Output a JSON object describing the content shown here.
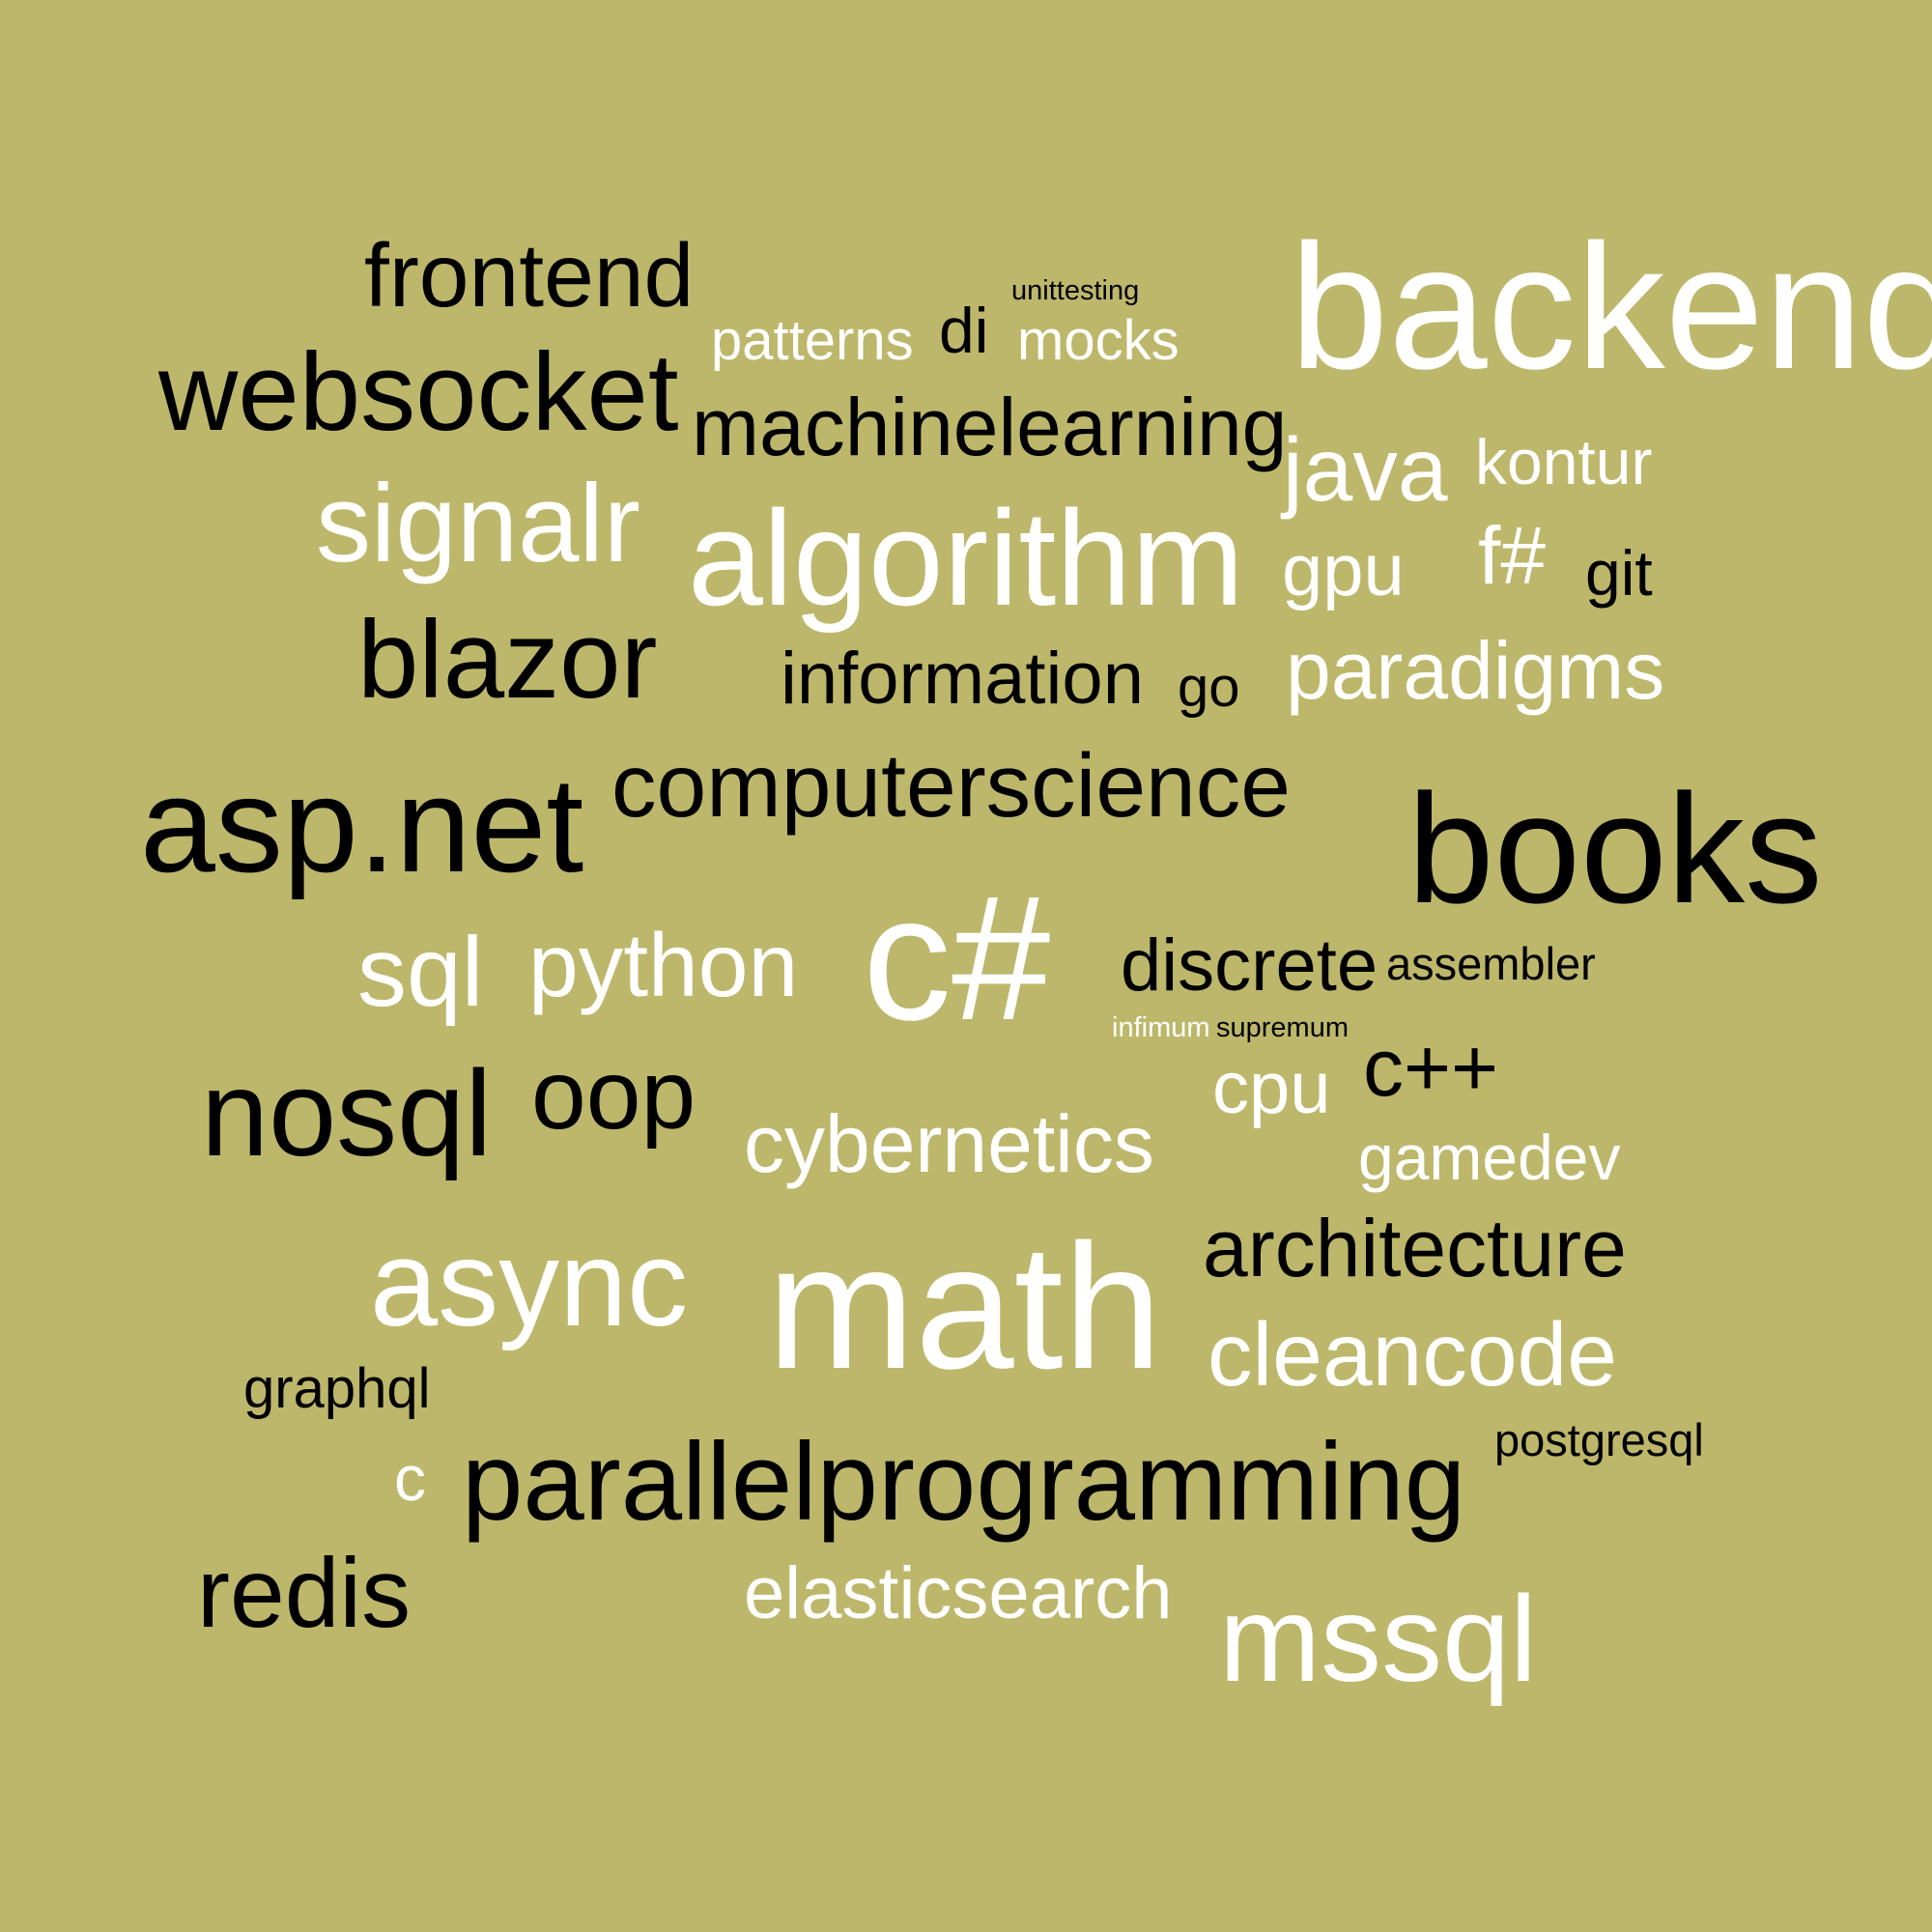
{
  "background_color": "#bdb76b",
  "text_colors": {
    "light": "#ffffff",
    "dark": "#000000"
  },
  "words": {
    "frontend": "frontend",
    "unittesting": "unittesting",
    "backend": "backend",
    "patterns": "patterns",
    "di": "di",
    "mocks": "mocks",
    "websocket": "websocket",
    "machinelearning": "machinelearning",
    "java": "java",
    "kontur": "kontur",
    "signalr": "signalr",
    "algorithm": "algorithm",
    "gpu": "gpu",
    "fsharp": "f#",
    "git": "git",
    "blazor": "blazor",
    "information": "information",
    "go": "go",
    "paradigms": "paradigms",
    "computerscience": "computerscience",
    "aspnet": "asp.net",
    "books": "books",
    "sql": "sql",
    "python": "python",
    "csharp": "c#",
    "discrete": "discrete",
    "assembler": "assembler",
    "infimum": "infimum",
    "supremum": "supremum",
    "cpu": "cpu",
    "cplusplus": "c++",
    "nosql": "nosql",
    "oop": "oop",
    "cybernetics": "cybernetics",
    "gamedev": "gamedev",
    "architecture": "architecture",
    "async": "async",
    "math": "math",
    "cleancode": "cleancode",
    "graphql": "graphql",
    "postgresql": "postgresql",
    "c": "c",
    "parallelprogramming": "parallelprogramming",
    "redis": "redis",
    "elasticsearch": "elasticsearch",
    "mssql": "mssql"
  }
}
